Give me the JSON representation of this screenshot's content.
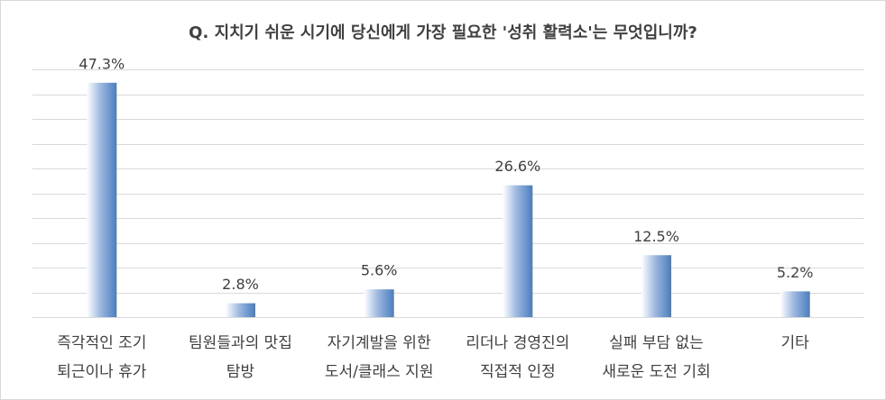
{
  "chart_data": {
    "type": "bar",
    "title": "Q. 지치기 쉬운 시기에 당신에게 가장 필요한 '성취 활력소'는 무엇입니까?",
    "categories": [
      "즉각적인 조기\n퇴근이나 휴가",
      "팀원들과의 맛집\n탐방",
      "자기계발을 위한\n도서/클래스 지원",
      "리더나 경영진의\n직접적 인정",
      "실패 부담 없는\n새로운 도전 기회",
      "기타"
    ],
    "values": [
      47.3,
      2.8,
      5.6,
      26.6,
      12.5,
      5.2
    ],
    "value_labels": [
      "47.3%",
      "2.8%",
      "5.6%",
      "26.6%",
      "12.5%",
      "5.2%"
    ],
    "color": "#4a7dbf",
    "ylim": [
      0,
      50
    ],
    "yticks": [
      0,
      5,
      10,
      15,
      20,
      25,
      30,
      35,
      40,
      45,
      50
    ],
    "grid": true
  }
}
